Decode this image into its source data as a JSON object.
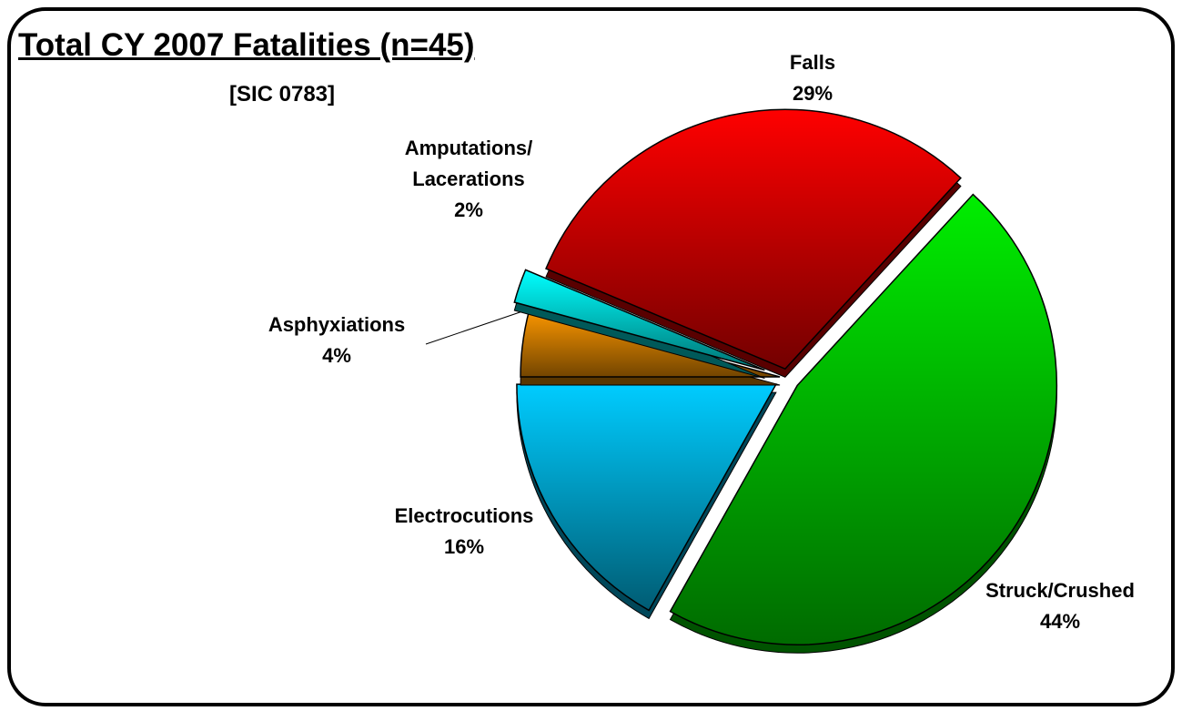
{
  "chart_data": {
    "type": "pie",
    "title": "Total CY 2007 Fatalities (n=45)",
    "subtitle": "[SIC 0783]",
    "categories": [
      "Falls",
      "Struck/Crushed",
      "Electrocutions",
      "Asphyxiations",
      "Amputations/ Lacerations"
    ],
    "values": [
      29,
      44,
      16,
      4,
      2
    ],
    "value_labels": [
      "29%",
      "44%",
      "16%",
      "4%",
      "2%"
    ],
    "colors": [
      "#ff0000",
      "#00ee00",
      "#00ccff",
      "#ff9900",
      "#00ffff"
    ]
  }
}
